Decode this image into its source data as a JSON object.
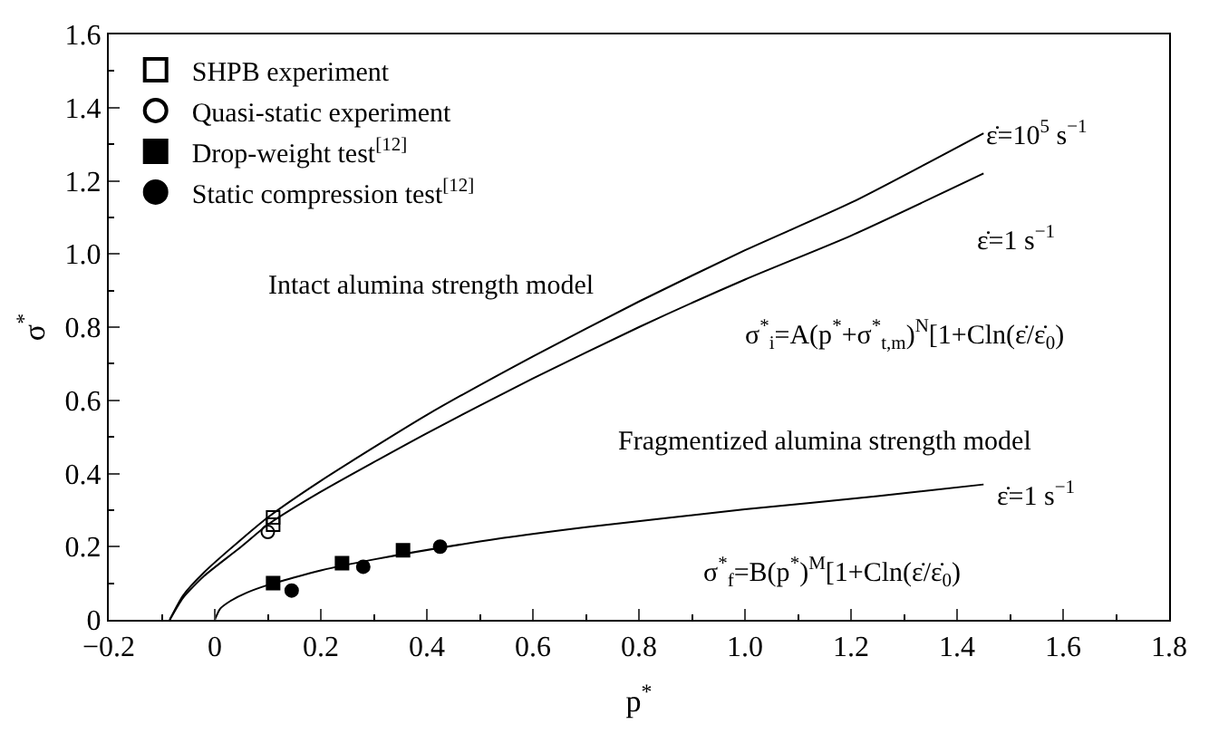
{
  "chart_data": {
    "type": "line",
    "xlabel": "p$^{*}$",
    "ylabel": "σ$^{*}$",
    "xlim": [
      -0.2,
      1.8
    ],
    "ylim": [
      0,
      1.6
    ],
    "xticks": [
      {
        "value": -0.2,
        "label": "−0.2"
      },
      0,
      0.2,
      0.4,
      0.6,
      0.8,
      {
        "value": 1.0,
        "label": "1.0"
      },
      1.2,
      1.4,
      1.6,
      1.8
    ],
    "yticks": [
      0,
      0.2,
      0.4,
      0.6,
      0.8,
      {
        "value": 1.0,
        "label": "1.0"
      },
      1.2,
      1.4,
      1.6
    ],
    "legend": "top left",
    "series": [
      {
        "color": "#000000",
        "x": [
          -0.085,
          -0.06,
          -0.02,
          0.05,
          0.1,
          0.2,
          0.4,
          0.6,
          0.8,
          1.0,
          1.2,
          1.45
        ],
        "values": [
          0,
          0.066,
          0.13,
          0.22,
          0.28,
          0.38,
          0.56,
          0.72,
          0.87,
          1.01,
          1.14,
          1.33
        ]
      },
      {
        "color": "#000000",
        "x": [
          -0.085,
          -0.06,
          -0.02,
          0.05,
          0.1,
          0.2,
          0.4,
          0.6,
          0.8,
          1.0,
          1.2,
          1.45
        ],
        "values": [
          0,
          0.06,
          0.12,
          0.2,
          0.26,
          0.35,
          0.51,
          0.66,
          0.8,
          0.93,
          1.05,
          1.22
        ]
      },
      {
        "color": "#000000",
        "x": [
          0,
          0.01,
          0.03,
          0.06,
          0.1,
          0.2,
          0.3,
          0.5,
          0.7,
          1.0,
          1.25,
          1.45
        ],
        "values": [
          0,
          0.03,
          0.052,
          0.074,
          0.095,
          0.135,
          0.165,
          0.214,
          0.253,
          0.302,
          0.338,
          0.37
        ]
      },
      {
        "type": "scatter",
        "name": "SHPB experiment",
        "marker": "square-open",
        "color": "#000000",
        "x": [
          0.11,
          0.11
        ],
        "values": [
          0.28,
          0.26
        ]
      },
      {
        "type": "scatter",
        "name": "Quasi-static experiment",
        "marker": "circle-open",
        "color": "#000000",
        "x": [
          0.1
        ],
        "values": [
          0.24
        ]
      },
      {
        "type": "scatter",
        "name": "Drop-weight test$^{[12]}$",
        "marker": "square",
        "color": "#000000",
        "x": [
          0.11,
          0.24,
          0.355
        ],
        "values": [
          0.1,
          0.155,
          0.19
        ]
      },
      {
        "type": "scatter",
        "name": "Static compression test$^{[12]}$",
        "marker": "circle",
        "color": "#000000",
        "x": [
          0.145,
          0.28,
          0.425
        ],
        "values": [
          0.08,
          0.145,
          0.2
        ]
      }
    ],
    "annotations": [
      "ε̇=10$^{5}$ s$^{−1}$",
      "ε̇=1 s$^{−1}$",
      "Intact alumina strength model",
      "σ$^{*}$$_{i}$=A(p$^{*}$+σ$^{*}$$_{t,m}$)$^{N}$[1+Cln(ε̇/ε̇$_{0}$)",
      "Fragmentized alumina strength model",
      "ε̇=1 s$^{−1}$",
      "σ$^{*}$$_{f}$=B(p$^{*}$)$^{M}$[1+Cln(ε̇/ε̇$_{0}$)"
    ]
  }
}
